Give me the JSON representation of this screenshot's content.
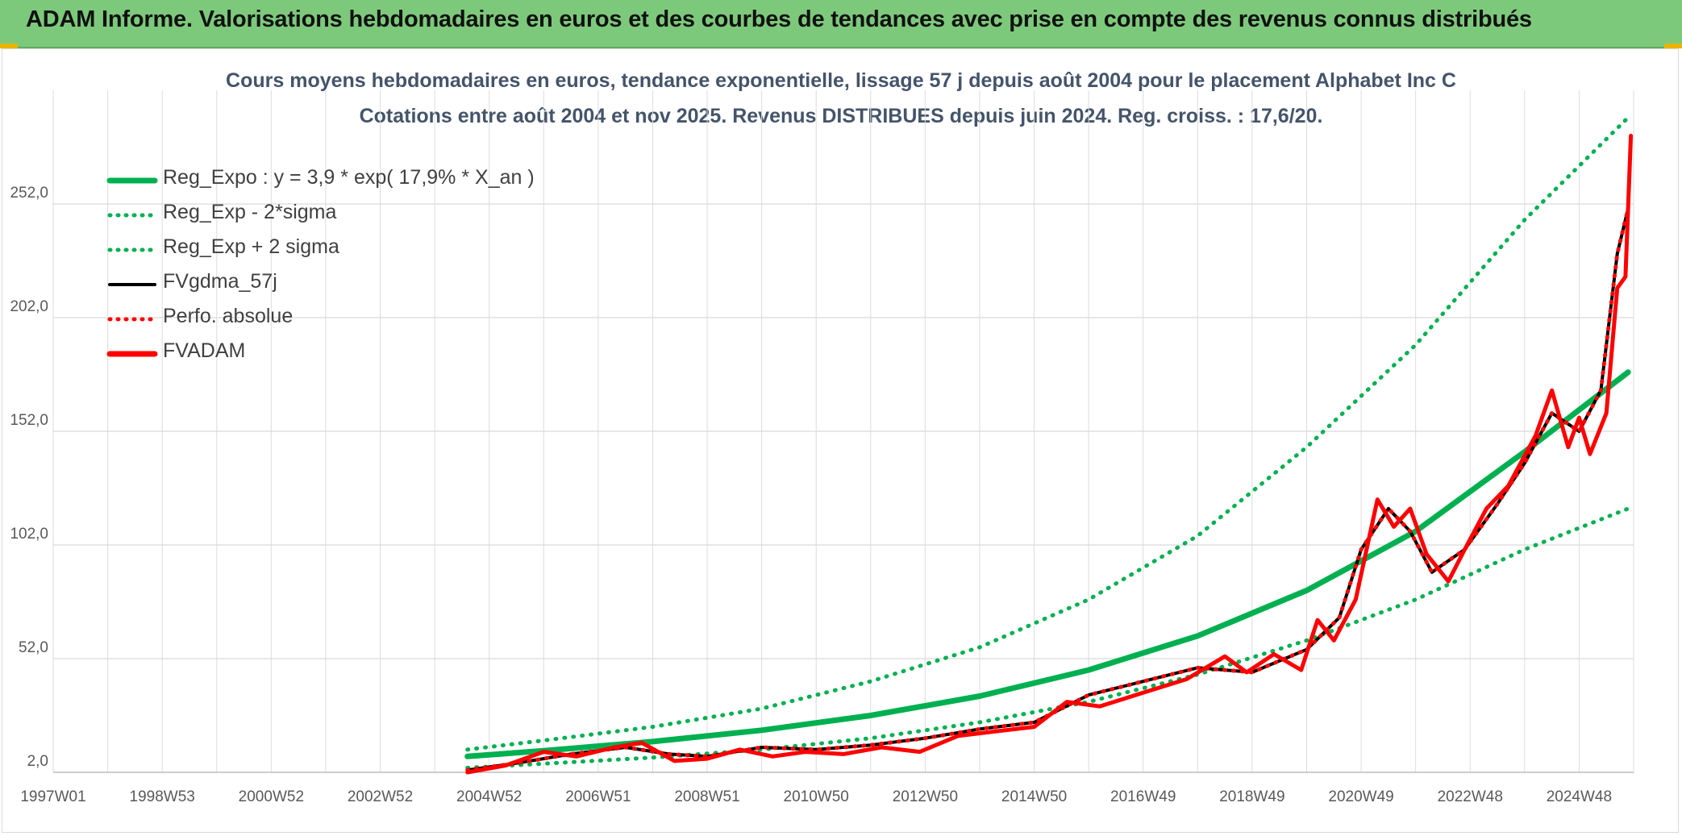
{
  "header": {
    "title": "ADAM Informe. Valorisations hebdomadaires en euros et des courbes de tendances avec prise en compte des revenus connus distribués"
  },
  "chart_data": {
    "type": "line",
    "title": "Cours moyens hebdomadaires en euros, tendance exponentielle, lissage 57 j depuis août 2004 pour le placement Alphabet Inc C",
    "subtitle": "Cotations entre août 2004 et nov 2025. Revenus DISTRIBUES depuis juin 2024. Reg. croiss. : 17,6/20.",
    "xlabel": "",
    "ylabel": "",
    "x_ticks": [
      "1997W01",
      "1998W53",
      "2000W52",
      "2002W52",
      "2004W52",
      "2006W51",
      "2008W51",
      "2010W50",
      "2012W50",
      "2014W50",
      "2016W49",
      "2018W49",
      "2020W49",
      "2022W48",
      "2024W48"
    ],
    "x_tick_years": [
      1997.0,
      1999.0,
      2001.0,
      2003.0,
      2005.0,
      2007.0,
      2009.0,
      2011.0,
      2013.0,
      2015.0,
      2017.0,
      2019.0,
      2021.0,
      2023.0,
      2025.0
    ],
    "xlim": [
      1997.0,
      2026.0
    ],
    "y_ticks": [
      "2,0",
      "52,0",
      "102,0",
      "152,0",
      "202,0",
      "252,0"
    ],
    "y_tick_values": [
      2,
      52,
      102,
      152,
      202,
      252
    ],
    "ylim": [
      2,
      302
    ],
    "grid": true,
    "legend_position": "top-left",
    "colors": {
      "reg_expo": "#00b050",
      "fvgdma": "#000000",
      "fvadam": "#ff0000",
      "perfo": "#ff0000"
    },
    "series": [
      {
        "name": "Reg_Expo : y = 3,9 * exp( 17,9% *  X_an )",
        "style": "solid-thick",
        "color": "#00b050",
        "x": [
          2004.6,
          2006,
          2008,
          2010,
          2012,
          2014,
          2016,
          2018,
          2020,
          2022,
          2024,
          2025.9
        ],
        "y": [
          9,
          11.5,
          15.5,
          20.5,
          27,
          35.5,
          47,
          62,
          82,
          108,
          143,
          178
        ]
      },
      {
        "name": "Reg_Exp - 2*sigma",
        "style": "dotted",
        "color": "#00b050",
        "x": [
          2004.6,
          2006,
          2008,
          2010,
          2012,
          2014,
          2016,
          2018,
          2020,
          2022,
          2024,
          2025.9
        ],
        "y": [
          4,
          5.8,
          8.5,
          12,
          17,
          24,
          33,
          45,
          60,
          78,
          100,
          118
        ]
      },
      {
        "name": "Reg_Exp + 2 sigma",
        "style": "dotted",
        "color": "#00b050",
        "x": [
          2004.6,
          2006,
          2008,
          2010,
          2012,
          2014,
          2016,
          2018,
          2020,
          2022,
          2024,
          2025.9
        ],
        "y": [
          12,
          16,
          22,
          30,
          42,
          57,
          78,
          106,
          145,
          190,
          245,
          290
        ]
      },
      {
        "name": "FVgdma_57j",
        "style": "solid",
        "color": "#000000",
        "x": [
          2004.6,
          2005.5,
          2006.5,
          2007.5,
          2008.3,
          2009,
          2010,
          2011,
          2012,
          2013,
          2014,
          2015,
          2016,
          2017,
          2018,
          2019,
          2020,
          2020.6,
          2021,
          2021.5,
          2021.9,
          2022.3,
          2022.9,
          2023.5,
          2024,
          2024.5,
          2025,
          2025.4,
          2025.7,
          2025.9
        ],
        "y": [
          3,
          6,
          10,
          13,
          10,
          9,
          13,
          12,
          14,
          17,
          21,
          24,
          36,
          42,
          48,
          46,
          56,
          70,
          100,
          118,
          108,
          90,
          100,
          120,
          138,
          160,
          152,
          170,
          230,
          250
        ]
      },
      {
        "name": "Perfo. absolue",
        "style": "dotted",
        "color": "#ff0000",
        "x": [
          2004.6,
          2005.5,
          2006.5,
          2007.5,
          2008.3,
          2009,
          2010,
          2011,
          2012,
          2013,
          2014,
          2015,
          2016,
          2017,
          2018,
          2019,
          2020,
          2020.6,
          2021,
          2021.5,
          2021.9,
          2022.3,
          2022.9,
          2023.5,
          2024,
          2024.5,
          2025,
          2025.4,
          2025.7,
          2025.9
        ],
        "y": [
          3,
          6,
          10,
          13,
          10,
          9,
          13,
          12,
          14,
          17,
          21,
          24,
          36,
          42,
          48,
          46,
          56,
          70,
          100,
          118,
          108,
          90,
          100,
          120,
          138,
          160,
          152,
          170,
          230,
          250
        ]
      },
      {
        "name": "FVADAM",
        "style": "solid-thick",
        "color": "#ff0000",
        "x": [
          2004.6,
          2005.3,
          2006,
          2006.6,
          2007.3,
          2007.8,
          2008.4,
          2009,
          2009.6,
          2010.2,
          2010.8,
          2011.5,
          2012.2,
          2012.9,
          2013.6,
          2014.3,
          2015,
          2015.6,
          2016.2,
          2017,
          2017.8,
          2018.5,
          2018.9,
          2019.4,
          2019.9,
          2020.2,
          2020.5,
          2020.9,
          2021.3,
          2021.6,
          2021.9,
          2022.2,
          2022.6,
          2022.9,
          2023.3,
          2023.7,
          2024.2,
          2024.5,
          2024.8,
          2025.0,
          2025.2,
          2025.5,
          2025.7,
          2025.85,
          2025.95
        ],
        "y": [
          2,
          5,
          11,
          9,
          13,
          15,
          7,
          8,
          12,
          9,
          11,
          10,
          13,
          11,
          18,
          20,
          22,
          33,
          31,
          37,
          43,
          53,
          46,
          54,
          47,
          69,
          60,
          78,
          122,
          110,
          118,
          98,
          86,
          100,
          118,
          128,
          150,
          170,
          145,
          158,
          142,
          160,
          215,
          220,
          282
        ]
      }
    ]
  }
}
